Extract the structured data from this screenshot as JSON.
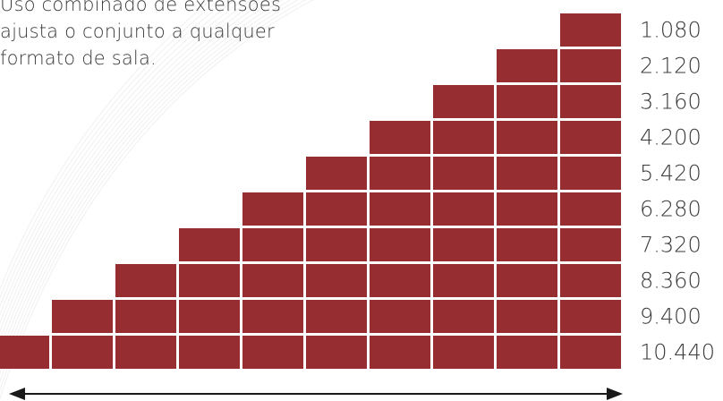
{
  "caption": {
    "lines": [
      "Uso combinado de extensões",
      "ajusta o conjunto a qualquer",
      "formato de sala."
    ]
  },
  "colors": {
    "block": "#962d31",
    "text": "#3a3a3a",
    "arrow": "#1a1a1a"
  },
  "chart_data": {
    "type": "bar",
    "orientation": "stepped-blocks",
    "title": "",
    "xlabel": "",
    "ylabel": "",
    "categories": [
      "1",
      "2",
      "3",
      "4",
      "5",
      "6",
      "7",
      "8",
      "9",
      "10"
    ],
    "blocks_per_row": [
      1,
      2,
      3,
      4,
      5,
      6,
      7,
      8,
      9,
      10
    ],
    "values": [
      1080,
      2120,
      3160,
      4200,
      5420,
      6280,
      7320,
      8360,
      9400,
      10440
    ],
    "labels": [
      "1.080",
      "2.120",
      "3.160",
      "4.200",
      "5.420",
      "6.280",
      "7.320",
      "8.360",
      "9.400",
      "10.440"
    ],
    "arrow": "double-headed horizontal arrow beneath the widest row",
    "grid": false,
    "legend": "none"
  }
}
